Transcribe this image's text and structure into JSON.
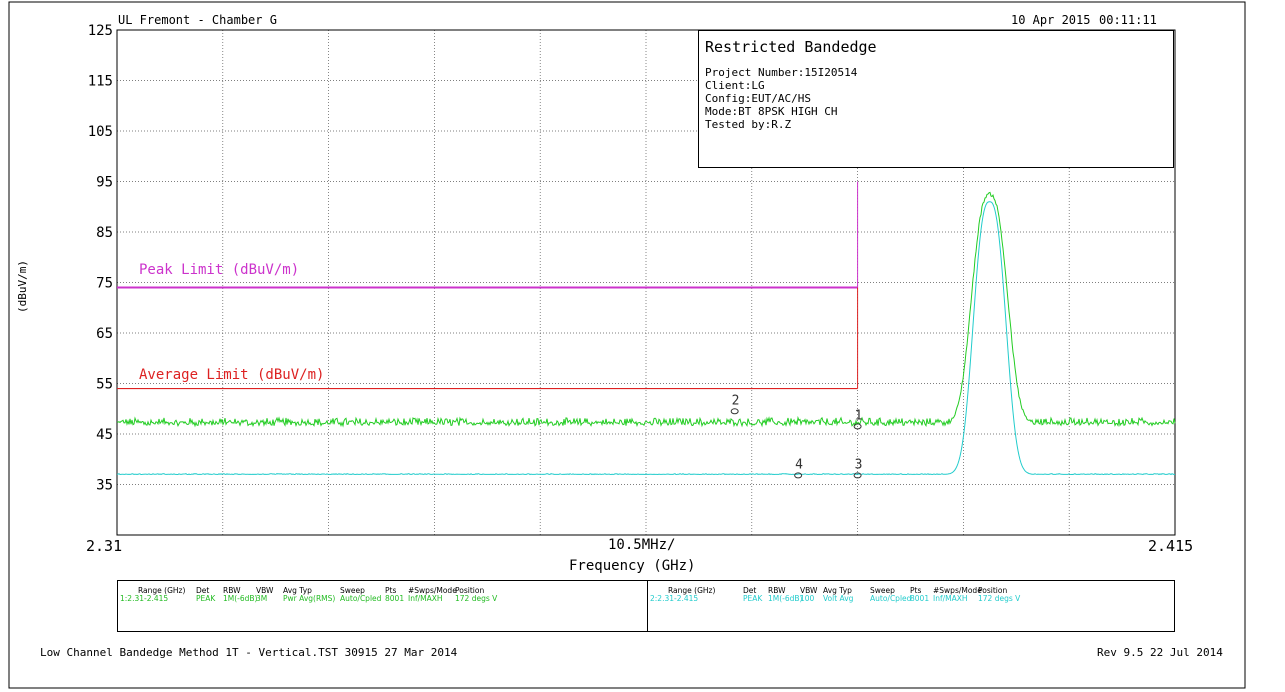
{
  "header": {
    "site": "UL Fremont - Chamber G",
    "date": "10 Apr 2015",
    "time": "00:11:11"
  },
  "info_box": {
    "title": "Restricted Bandedge",
    "lines": [
      "Project Number:15I20514",
      "Client:LG",
      "Config:EUT/AC/HS",
      "Mode:BT 8PSK HIGH CH",
      "Tested by:R.Z"
    ]
  },
  "chart_data": {
    "type": "line",
    "ylabel": "(dBuV/m)",
    "xlabel": "Frequency (GHz)",
    "x_center_label": "10.5MHz/",
    "x_start_label": "2.31",
    "x_end_label": "2.415",
    "xlim": [
      2.31,
      2.415
    ],
    "ylim": [
      25,
      125
    ],
    "yticks": [
      125,
      115,
      105,
      95,
      85,
      75,
      65,
      55,
      45,
      35
    ],
    "grid": true,
    "limits": [
      {
        "name": "Peak Limit (dBuV/m)",
        "value": 74,
        "x_end": 2.3835,
        "color": "#cc33cc"
      },
      {
        "name": "Average Limit (dBuV/m)",
        "value": 54,
        "x_end": 2.3835,
        "color": "#dd2222"
      }
    ],
    "series": [
      {
        "color": "#22cc22",
        "noise_floor": 47,
        "noise_amp": 1.2,
        "peak_center": 2.3966,
        "peak_value": 92.5,
        "peak_halfwidth": 0.0022
      },
      {
        "color": "#22cccc",
        "noise_floor": 37,
        "noise_amp": 0.15,
        "peak_center": 2.3966,
        "peak_value": 91.0,
        "peak_halfwidth": 0.002
      }
    ],
    "markers": [
      {
        "label": "1",
        "x": 2.3835,
        "y": 46.5
      },
      {
        "label": "2",
        "x": 2.3713,
        "y": 49.5
      },
      {
        "label": "3",
        "x": 2.3835,
        "y": 36.8
      },
      {
        "label": "4",
        "x": 2.3776,
        "y": 36.8
      }
    ]
  },
  "table": {
    "headers": [
      "Range (GHz)",
      "Det",
      "RBW",
      "VBW",
      "Avg Typ",
      "Sweep",
      "Pts",
      "#Swps/Mode",
      "Position"
    ],
    "rows": [
      {
        "color": "#22bb22",
        "values": [
          "1:2.31-2.415",
          "PEAK",
          "1M(-6dB)",
          "3M",
          "Pwr Avg(RMS)",
          "Auto/Cpled",
          "8001",
          "Inf/MAXH",
          "172 degs V"
        ]
      },
      {
        "color": "#22cccc",
        "values": [
          "2:2.31-2.415",
          "PEAK",
          "1M(-6dB)",
          "100",
          "Volt Avg",
          "Auto/Cpled",
          "8001",
          "Inf/MAXH",
          "172 degs V"
        ]
      }
    ]
  },
  "footer": {
    "left": "Low Channel Bandedge Method 1T - Vertical.TST 30915 27 Mar 2014",
    "right": "Rev 9.5 22 Jul 2014"
  }
}
